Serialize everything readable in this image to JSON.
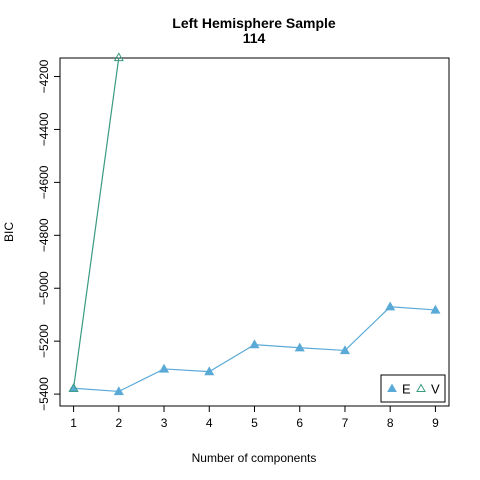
{
  "chart_data": {
    "type": "line",
    "title": "Left Hemisphere Sample",
    "subtitle": "114",
    "xlabel": "Number of components",
    "ylabel": "BIC",
    "x": [
      1,
      2,
      3,
      4,
      5,
      6,
      7,
      8,
      9
    ],
    "xlim": [
      0.7,
      9.3
    ],
    "ylim": [
      -5445,
      -4130
    ],
    "x_ticks": [
      1,
      2,
      3,
      4,
      5,
      6,
      7,
      8,
      9
    ],
    "y_ticks": [
      -5400,
      -5200,
      -5000,
      -4800,
      -4600,
      -4400,
      -4200
    ],
    "grid": false,
    "legend_position": "bottom-right",
    "series": [
      {
        "name": "E",
        "marker": "filled-triangle",
        "color": "#5aaad8",
        "values": [
          -5378,
          -5390,
          -5305,
          -5315,
          -5213,
          -5225,
          -5235,
          -5070,
          -5082
        ]
      },
      {
        "name": "V",
        "marker": "open-triangle",
        "color": "#3a9a80",
        "values": [
          -5378,
          -4128,
          null,
          null,
          null,
          null,
          null,
          null,
          null
        ]
      }
    ]
  }
}
